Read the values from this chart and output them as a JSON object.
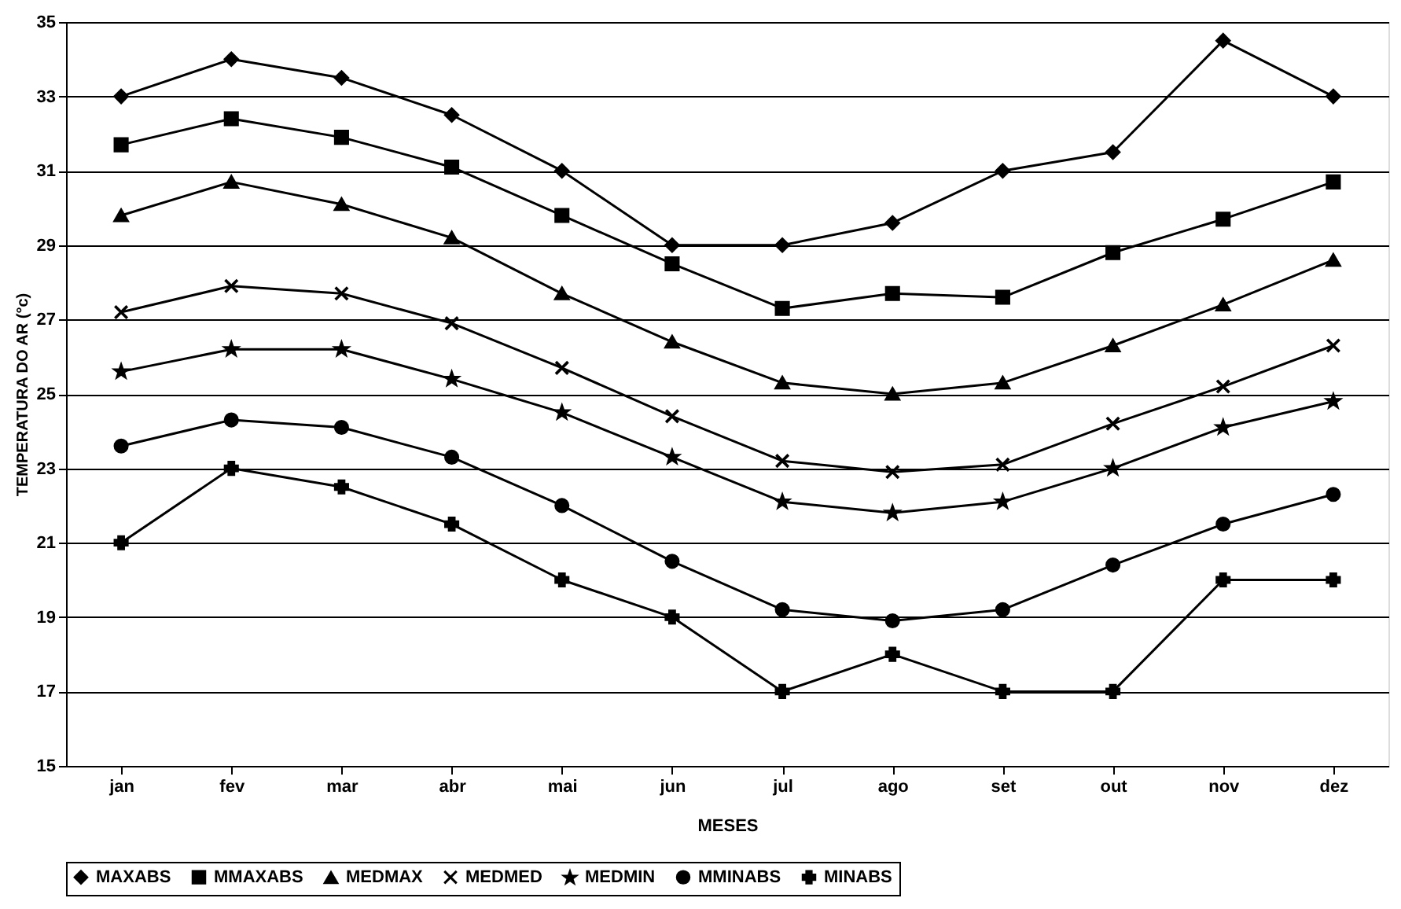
{
  "chart_data": {
    "type": "line",
    "xlabel": "MESES",
    "ylabel": "TEMPERATURA DO AR (°c)",
    "categories": [
      "jan",
      "fev",
      "mar",
      "abr",
      "mai",
      "jun",
      "jul",
      "ago",
      "set",
      "out",
      "nov",
      "dez"
    ],
    "ylim": [
      15,
      35
    ],
    "yticks": [
      15,
      17,
      19,
      21,
      23,
      25,
      27,
      29,
      31,
      33,
      35
    ],
    "grid": "y",
    "legend": "bottom",
    "series": [
      {
        "name": "MAXABS",
        "color": "#000000",
        "marker": "diamond",
        "values": [
          33,
          34,
          33.5,
          32.5,
          31,
          29,
          29,
          29.6,
          31,
          31.5,
          34.5,
          33
        ]
      },
      {
        "name": "MMAXABS",
        "color": "#000000",
        "marker": "square",
        "values": [
          31.7,
          32.4,
          31.9,
          31.1,
          29.8,
          28.5,
          27.3,
          27.7,
          27.6,
          28.8,
          29.7,
          30.7
        ]
      },
      {
        "name": "MEDMAX",
        "color": "#000000",
        "marker": "triangle",
        "values": [
          29.8,
          30.7,
          30.1,
          29.2,
          27.7,
          26.4,
          25.3,
          25.0,
          25.3,
          26.3,
          27.4,
          28.6
        ]
      },
      {
        "name": "MEDMED",
        "color": "#000000",
        "marker": "cross",
        "values": [
          27.2,
          27.9,
          27.7,
          26.9,
          25.7,
          24.4,
          23.2,
          22.9,
          23.1,
          24.2,
          25.2,
          26.3
        ]
      },
      {
        "name": "MEDMIN",
        "color": "#000000",
        "marker": "star",
        "values": [
          25.6,
          26.2,
          26.2,
          25.4,
          24.5,
          23.3,
          22.1,
          21.8,
          22.1,
          23.0,
          24.1,
          24.8
        ]
      },
      {
        "name": "MMINABS",
        "color": "#000000",
        "marker": "circle",
        "values": [
          23.6,
          24.3,
          24.1,
          23.3,
          22.0,
          20.5,
          19.2,
          18.9,
          19.2,
          20.4,
          21.5,
          22.3
        ]
      },
      {
        "name": "MINABS",
        "color": "#000000",
        "marker": "cross",
        "values": [
          21,
          23,
          22.5,
          21.5,
          20,
          19,
          17,
          18,
          17,
          17,
          20,
          20
        ]
      }
    ]
  }
}
